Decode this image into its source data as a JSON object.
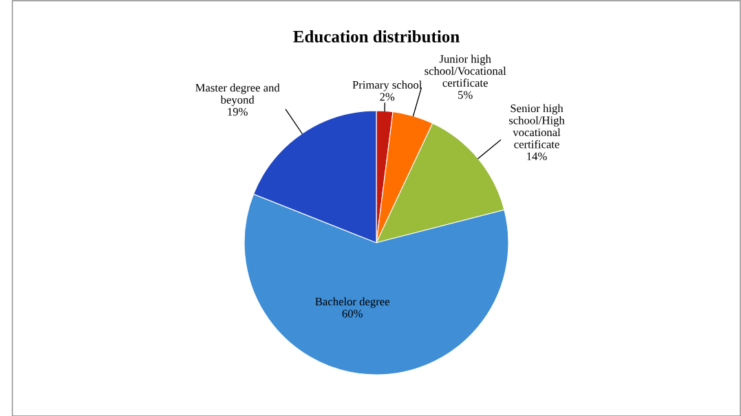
{
  "chart_data": {
    "type": "pie",
    "title": "Education distribution",
    "categories": [
      "Primary school",
      "Junior high\nschool/Vocational\ncertificate",
      "Senior high\nschool/High\nvocational\ncertificate",
      "Bachelor degree",
      "Master degree and\nbeyond"
    ],
    "values": [
      2,
      5,
      14,
      60,
      19
    ],
    "value_labels": [
      "2%",
      "5%",
      "14%",
      "60%",
      "19%"
    ],
    "colors": [
      "#c5180f",
      "#ff6f00",
      "#9bbb3b",
      "#3f8ed6",
      "#2147c4"
    ],
    "legend": false
  }
}
